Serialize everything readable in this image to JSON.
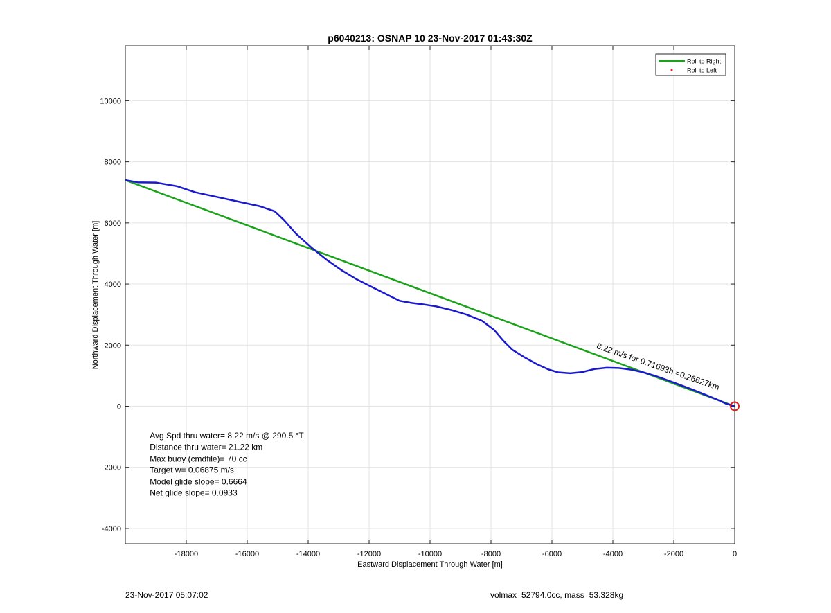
{
  "chart_data": {
    "type": "line",
    "title": "p6040213: OSNAP 10 23-Nov-2017 01:43:30Z",
    "xlabel": "Eastward Displacement Through Water [m]",
    "ylabel": "Northward Displacement Through Water [m]",
    "xlim": [
      -20000,
      0
    ],
    "ylim": [
      -4500,
      11800
    ],
    "xticks": [
      -18000,
      -16000,
      -14000,
      -12000,
      -10000,
      -8000,
      -6000,
      -4000,
      -2000,
      0
    ],
    "yticks": [
      -4000,
      -2000,
      0,
      2000,
      4000,
      6000,
      8000,
      10000
    ],
    "grid": true,
    "legend_position": "top-right",
    "legend": [
      {
        "label": "Roll to Right",
        "color": "#1aa31a",
        "style": "line"
      },
      {
        "label": "Roll to Left",
        "color": "#e02020",
        "style": "dot"
      }
    ],
    "series": [
      {
        "color": "#1a1acc",
        "x": [
          -20000,
          -19600,
          -19000,
          -18300,
          -17700,
          -17000,
          -16300,
          -15600,
          -15100,
          -14800,
          -14400,
          -13900,
          -13400,
          -12900,
          -12400,
          -11900,
          -11400,
          -11000,
          -10600,
          -10200,
          -9800,
          -9300,
          -8800,
          -8300,
          -7900,
          -7600,
          -7300,
          -6900,
          -6500,
          -6100,
          -5800,
          -5400,
          -5000,
          -4600,
          -4200,
          -3800,
          -3400,
          -3000,
          -2600,
          -2200,
          -1800,
          -1400,
          -1000,
          -600,
          -300,
          0
        ],
        "y": [
          7400,
          7330,
          7320,
          7200,
          7000,
          6850,
          6700,
          6550,
          6380,
          6100,
          5650,
          5200,
          4800,
          4450,
          4150,
          3900,
          3650,
          3450,
          3380,
          3330,
          3270,
          3150,
          3000,
          2800,
          2500,
          2150,
          1850,
          1600,
          1380,
          1200,
          1110,
          1080,
          1120,
          1220,
          1260,
          1250,
          1200,
          1110,
          990,
          850,
          700,
          550,
          390,
          230,
          90,
          0
        ]
      },
      {
        "color": "#1aa31a",
        "x": [
          -20000,
          0
        ],
        "y": [
          7400,
          0
        ]
      }
    ],
    "annotations": [
      {
        "text": "8.22 m/s for 0.71693h =0.26627km",
        "x": -4550,
        "y": 1900,
        "rotation": 19
      },
      {
        "text": "Avg Spd thru water= 8.22 m/s @ 290.5 °T",
        "x": -19200,
        "y": -1050
      },
      {
        "text": "Distance thru water= 21.22 km",
        "x": -19200,
        "y": -1430
      },
      {
        "text": "Max buoy (cmdfile)= 70 cc",
        "x": -19200,
        "y": -1810
      },
      {
        "text": "Target w= 0.06875 m/s",
        "x": -19200,
        "y": -2180
      },
      {
        "text": "Model glide slope= 0.6664",
        "x": -19200,
        "y": -2560
      },
      {
        "text": "Net glide slope= 0.0933",
        "x": -19200,
        "y": -2930
      }
    ],
    "end_marker": {
      "x": 0,
      "y": 0,
      "color": "#e02020"
    }
  },
  "footer": {
    "left": "23-Nov-2017 05:07:02",
    "right": "volmax=52794.0cc, mass=53.328kg"
  }
}
